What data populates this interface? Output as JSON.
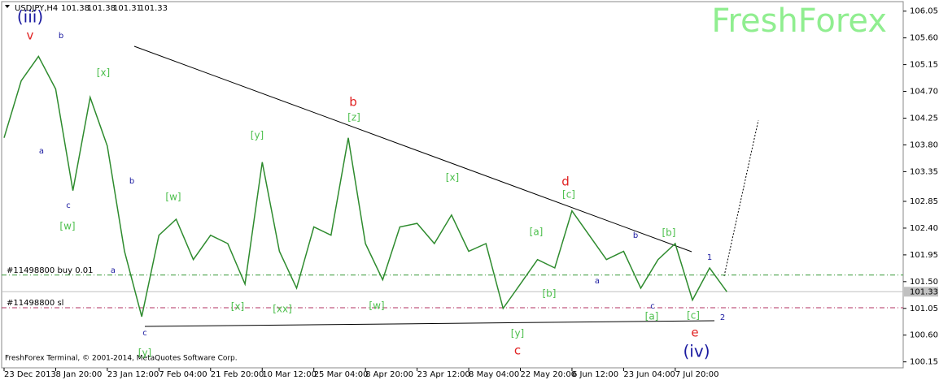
{
  "chart_data": {
    "type": "line",
    "symbol": "USDJPY,H4",
    "ohlc": [
      101.38,
      101.38,
      101.31,
      101.33
    ],
    "watermark": "FreshForex",
    "footer": "FreshForex Terminal, © 2001-2014, MetaQuotes Software Corp.",
    "categories": [
      "23 Dec 2013",
      null,
      null,
      "8 Jan 20:00",
      null,
      null,
      "23 Jan 12:00",
      null,
      null,
      "7 Feb 04:00",
      null,
      null,
      "21 Feb 20:00",
      null,
      null,
      "10 Mar 12:00",
      null,
      null,
      "25 Mar 04:00",
      null,
      null,
      "8 Apr 20:00",
      null,
      null,
      "23 Apr 12:00",
      null,
      null,
      "8 May 04:00",
      null,
      null,
      "22 May 20:00",
      null,
      null,
      "6 Jun 12:00",
      null,
      null,
      "23 Jun 04:00",
      null,
      null,
      "7 Jul 20:00",
      null,
      null,
      null
    ],
    "series": [
      {
        "name": "USDJPY",
        "color": "#2e8b2e",
        "values": [
          103.92,
          104.88,
          105.29,
          104.74,
          103.03,
          104.6,
          103.78,
          102.01,
          100.91,
          102.28,
          102.55,
          101.87,
          102.28,
          102.14,
          101.46,
          103.51,
          102.01,
          101.39,
          102.42,
          102.28,
          103.92,
          102.14,
          101.53,
          102.42,
          102.48,
          102.14,
          102.62,
          102.01,
          102.14,
          101.05,
          101.46,
          101.87,
          101.73,
          102.69,
          102.28,
          101.87,
          102.01,
          101.39,
          101.87,
          102.14,
          101.19,
          101.73,
          101.33
        ]
      }
    ],
    "ylim": [
      100.05,
      106.21
    ],
    "yticks": [
      106.05,
      {
        "value": 105.6,
        "label": "105.60"
      },
      105.15,
      {
        "value": 104.7,
        "label": "104.70"
      },
      104.25,
      {
        "value": 103.8,
        "label": "103.80"
      },
      103.35,
      102.85,
      {
        "value": 102.4,
        "label": "102.40"
      },
      101.95,
      {
        "value": 101.5,
        "label": "101.50"
      },
      101.05,
      {
        "value": 100.6,
        "label": "100.60"
      },
      100.15
    ],
    "current_price": 101.33,
    "levels": [
      {
        "label": "#11498800 buy 0.01",
        "value": 101.61,
        "color": "#3a9a3a"
      },
      {
        "label": "#11498800 sl",
        "value": 101.06,
        "color": "#b03060"
      }
    ],
    "annotations": [
      {
        "text": "(iii)",
        "color": "#1a1aa0"
      },
      {
        "text": "v",
        "color": "#e02020"
      },
      {
        "text": "b",
        "color": "#1a1aa0"
      },
      {
        "text": "[x]",
        "color": "#4cbf4c"
      },
      {
        "text": "a",
        "color": "#1a1aa0"
      },
      {
        "text": "c",
        "color": "#1a1aa0"
      },
      {
        "text": "[w]",
        "color": "#4cbf4c"
      },
      {
        "text": "b",
        "color": "#1a1aa0"
      },
      {
        "text": "a",
        "color": "#1a1aa0"
      },
      {
        "text": "c",
        "color": "#1a1aa0"
      },
      {
        "text": "[y]",
        "color": "#4cbf4c"
      },
      {
        "text": "[w]",
        "color": "#4cbf4c"
      },
      {
        "text": "[y]",
        "color": "#4cbf4c"
      },
      {
        "text": "[x]",
        "color": "#4cbf4c"
      },
      {
        "text": "[xx]",
        "color": "#4cbf4c"
      },
      {
        "text": "b",
        "color": "#e02020"
      },
      {
        "text": "[z]",
        "color": "#4cbf4c"
      },
      {
        "text": "[w]",
        "color": "#4cbf4c"
      },
      {
        "text": "[x]",
        "color": "#4cbf4c"
      },
      {
        "text": "[y]",
        "color": "#4cbf4c"
      },
      {
        "text": "c",
        "color": "#e02020"
      },
      {
        "text": "d",
        "color": "#e02020"
      },
      {
        "text": "[c]",
        "color": "#4cbf4c"
      },
      {
        "text": "[a]",
        "color": "#4cbf4c"
      },
      {
        "text": "[b]",
        "color": "#4cbf4c"
      },
      {
        "text": "a",
        "color": "#1a1aa0"
      },
      {
        "text": "b",
        "color": "#1a1aa0"
      },
      {
        "text": "c",
        "color": "#1a1aa0"
      },
      {
        "text": "[a]",
        "color": "#4cbf4c"
      },
      {
        "text": "[b]",
        "color": "#4cbf4c"
      },
      {
        "text": "1",
        "color": "#1a1aa0"
      },
      {
        "text": "[c]",
        "color": "#4cbf4c"
      },
      {
        "text": "2",
        "color": "#1a1aa0"
      },
      {
        "text": "e",
        "color": "#e02020"
      },
      {
        "text": "(iv)",
        "color": "#1a1aa0"
      }
    ]
  }
}
